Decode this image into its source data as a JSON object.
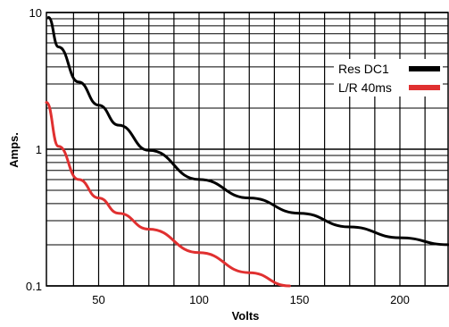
{
  "chart_data": {
    "type": "line",
    "title": "",
    "xlabel": "Volts",
    "ylabel": "Amps.",
    "xlim": [
      24,
      224
    ],
    "ylim": [
      0.1,
      10
    ],
    "yscale": "log",
    "grid": true,
    "legend_position": "top-right",
    "x_ticks": [
      50,
      100,
      150,
      200
    ],
    "x_tick_labels": [
      "50",
      "100",
      "150",
      "200"
    ],
    "y_ticks": [
      0.1,
      1,
      10
    ],
    "y_tick_labels": [
      "0.1",
      "1",
      "10"
    ],
    "series": [
      {
        "name": "Res DC1",
        "color": "#000000",
        "x": [
          25,
          30,
          40,
          50,
          60,
          75,
          100,
          125,
          150,
          175,
          200,
          224
        ],
        "y": [
          9.2,
          5.6,
          3.1,
          2.1,
          1.5,
          0.98,
          0.6,
          0.44,
          0.34,
          0.27,
          0.225,
          0.2
        ]
      },
      {
        "name": "L/R 40ms",
        "color": "#e03030",
        "x": [
          24,
          30,
          40,
          50,
          60,
          75,
          100,
          125,
          145
        ],
        "y": [
          2.2,
          1.05,
          0.6,
          0.44,
          0.34,
          0.26,
          0.175,
          0.125,
          0.1
        ]
      }
    ]
  }
}
